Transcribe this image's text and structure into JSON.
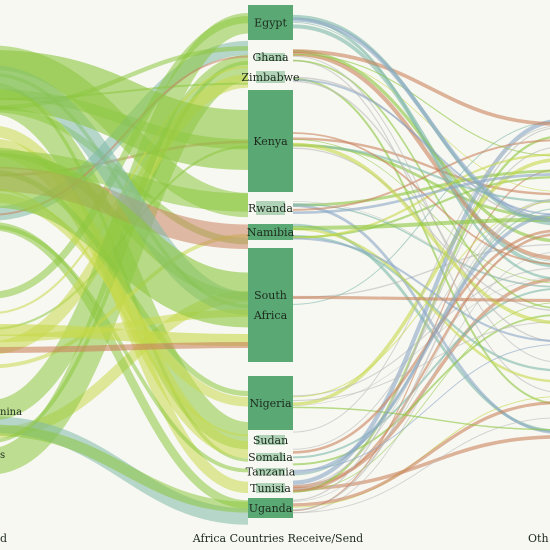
{
  "diagram": {
    "colors": {
      "node": "#5aa874",
      "flow_green": "#8cc63f",
      "flow_lime": "#c6d84a",
      "flow_teal": "#7fb9a8",
      "flow_orange": "#c9835e",
      "flow_blue": "#8aa6c6",
      "gray": "#bbbbbb"
    },
    "center_axis_label": "Africa Countries Receive/Send",
    "left_axis_label": "d",
    "right_axis_label": "Oth",
    "left_edge_labels": [
      "nina",
      "s"
    ],
    "nodes": [
      {
        "name": "Egypt",
        "lines": [
          "Egypt"
        ],
        "bar": true
      },
      {
        "name": "Ghana",
        "lines": [
          "Ghana"
        ],
        "bar": false
      },
      {
        "name": "Zimbabwe",
        "lines": [
          "Zimbabwe"
        ],
        "bar": false
      },
      {
        "name": "Kenya",
        "lines": [
          "Kenya"
        ],
        "bar": true
      },
      {
        "name": "Rwanda",
        "lines": [
          "Rwanda"
        ],
        "bar": false
      },
      {
        "name": "Namibia",
        "lines": [
          "Namibia"
        ],
        "bar": true
      },
      {
        "name": "South Africa",
        "lines": [
          "South",
          "Africa"
        ],
        "bar": true
      },
      {
        "name": "Nigeria",
        "lines": [
          "Nigeria"
        ],
        "bar": true
      },
      {
        "name": "Sudan",
        "lines": [
          "Sudan"
        ],
        "bar": false
      },
      {
        "name": "Somalia",
        "lines": [
          "Somalia"
        ],
        "bar": false
      },
      {
        "name": "Tanzania",
        "lines": [
          "Tanzania"
        ],
        "bar": false
      },
      {
        "name": "Tunisia",
        "lines": [
          "Tunisia"
        ],
        "bar": false
      },
      {
        "name": "Uganda",
        "lines": [
          "Uganda"
        ],
        "bar": true
      }
    ]
  }
}
